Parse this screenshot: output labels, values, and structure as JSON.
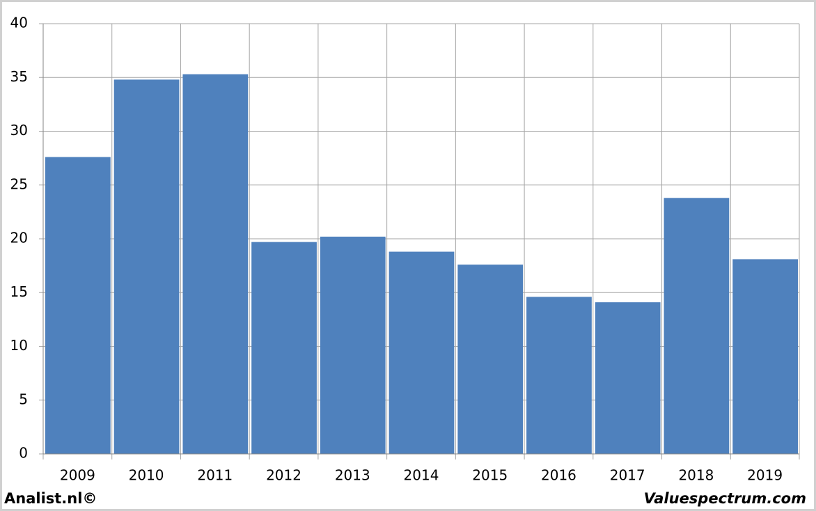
{
  "chart_data": {
    "type": "bar",
    "categories": [
      "2009",
      "2010",
      "2011",
      "2012",
      "2013",
      "2014",
      "2015",
      "2016",
      "2017",
      "2018",
      "2019"
    ],
    "values": [
      27.6,
      34.8,
      35.3,
      19.7,
      20.2,
      18.8,
      17.6,
      14.6,
      14.1,
      23.8,
      18.1
    ],
    "color": "#4f81bd",
    "ylim": [
      0,
      40
    ],
    "yticks": [
      0,
      5,
      10,
      15,
      20,
      25,
      30,
      35,
      40
    ],
    "grid": true,
    "annotations": [
      "Analist.nl©",
      "Valuespectrum.com"
    ]
  }
}
